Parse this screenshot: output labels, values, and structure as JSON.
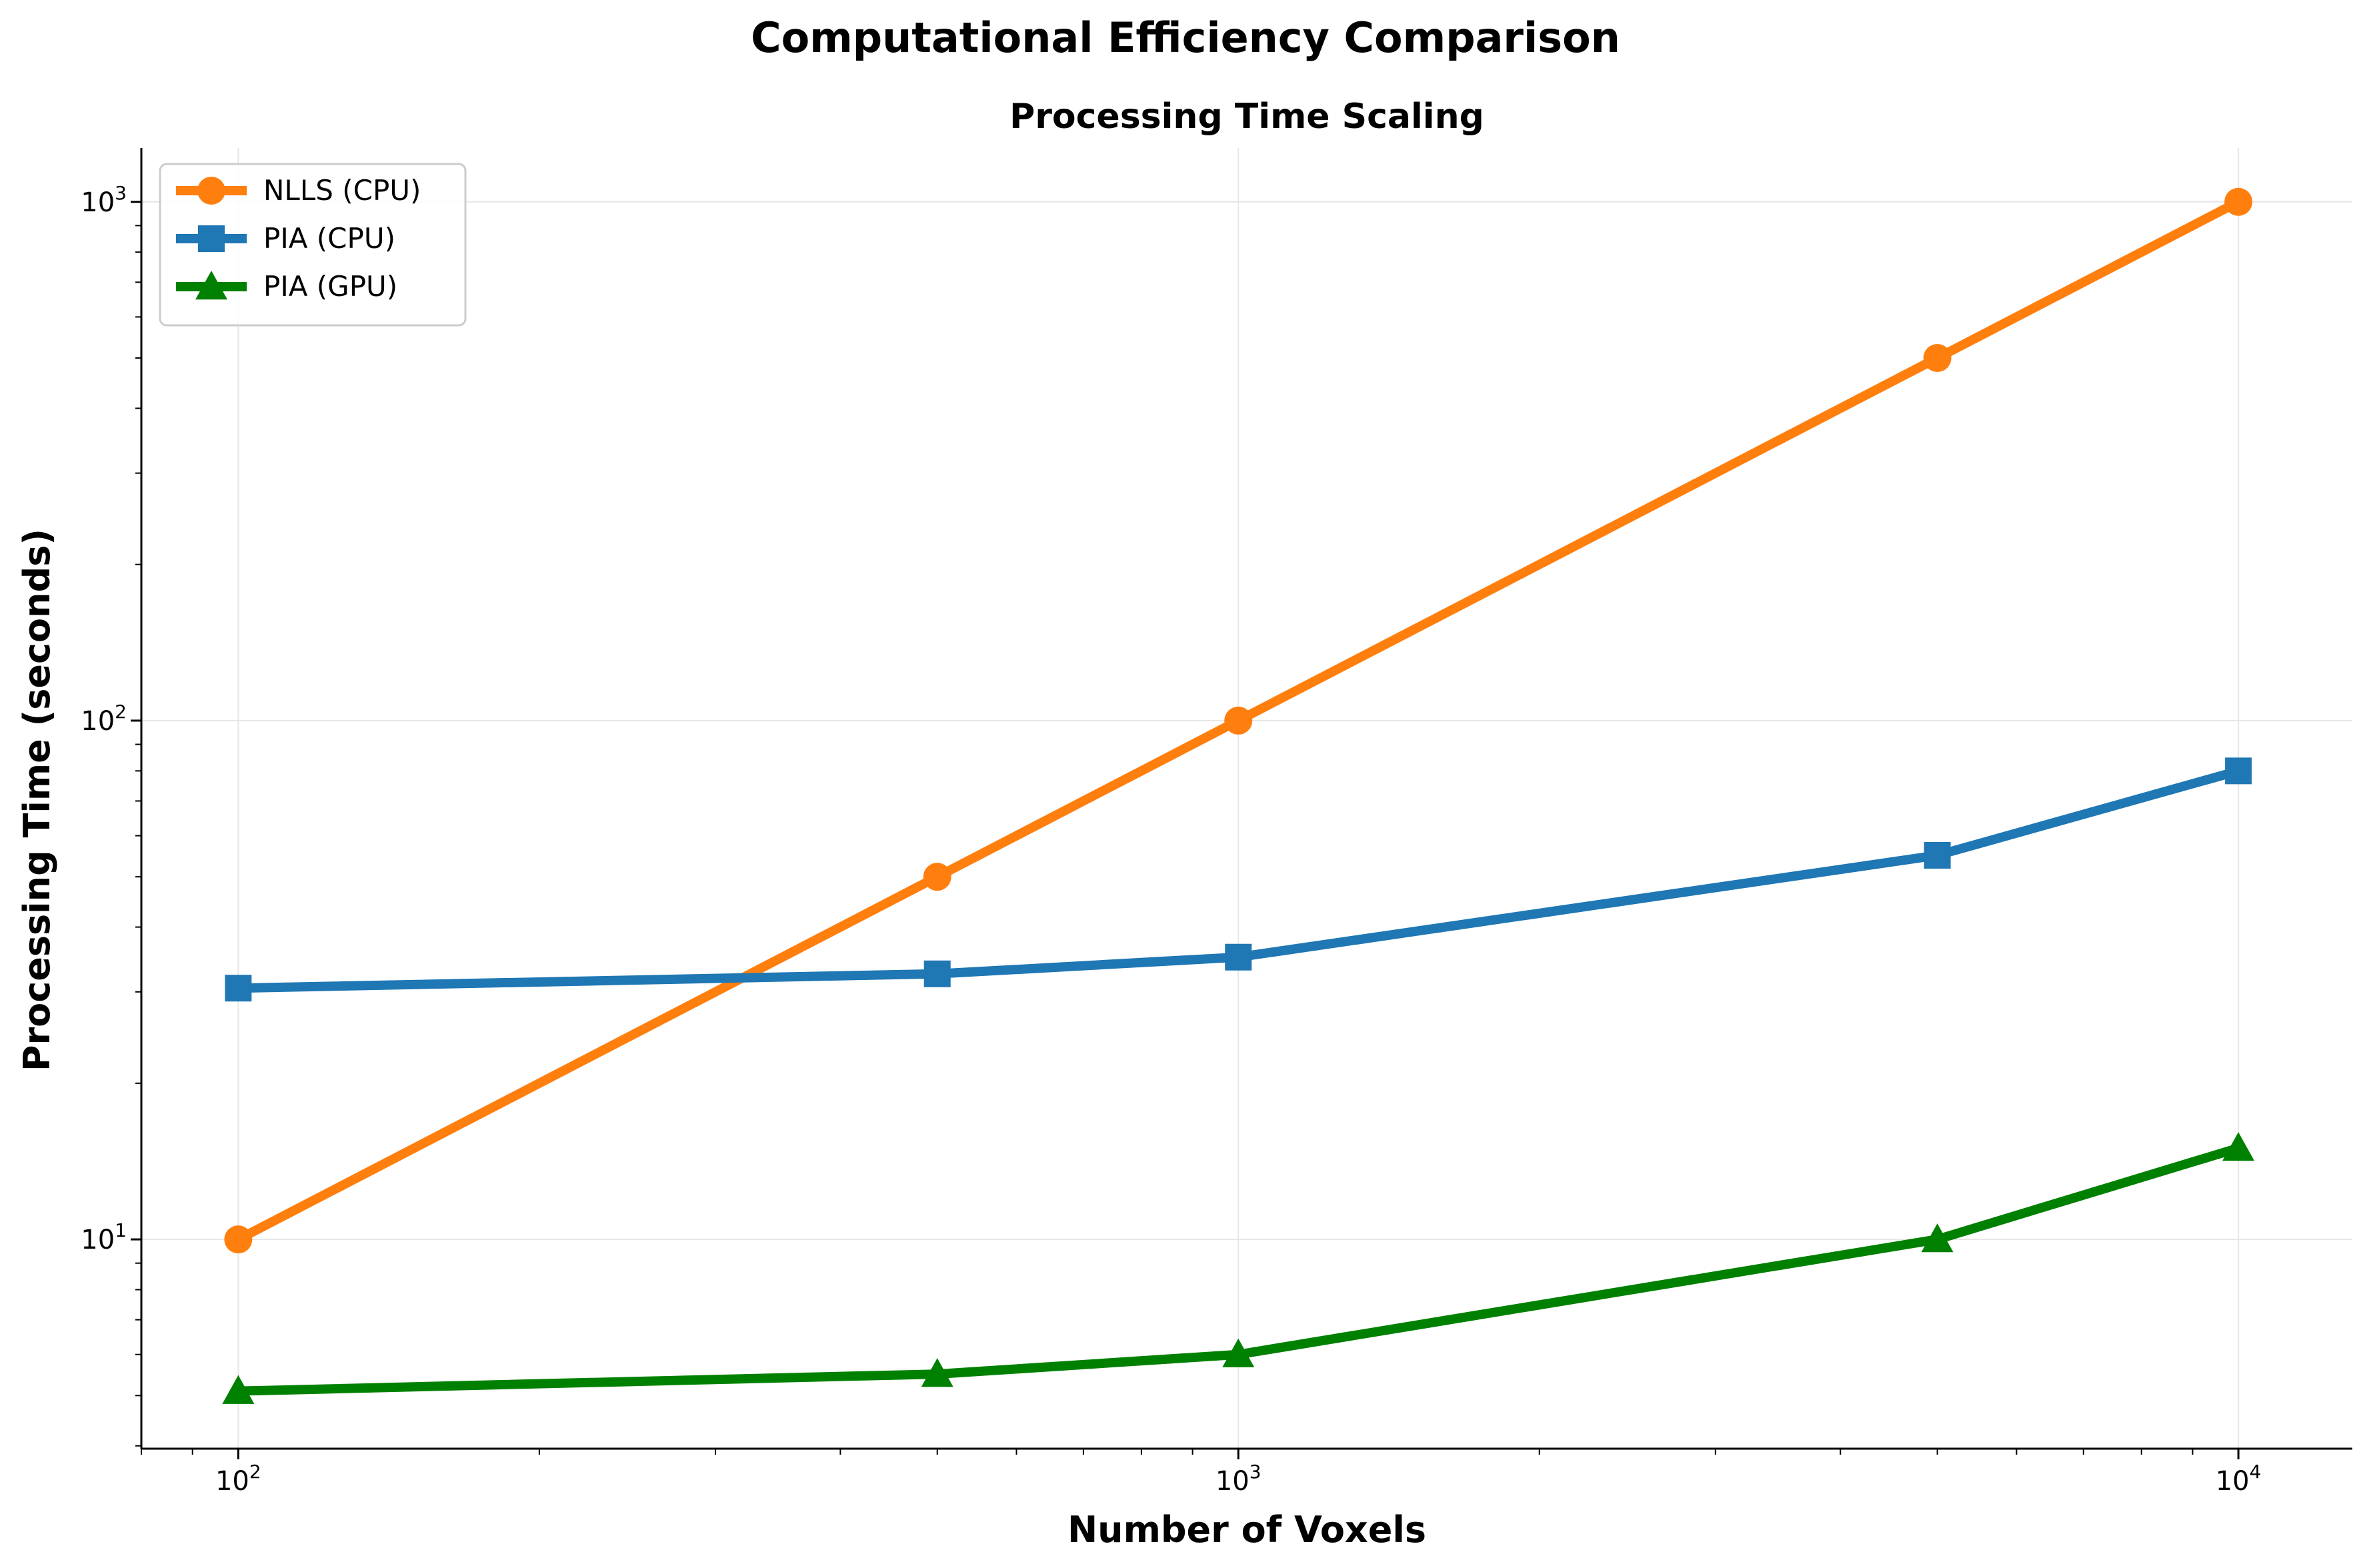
{
  "chart_data": {
    "type": "line",
    "suptitle": "Computational Efficiency Comparison",
    "title": "Processing Time Scaling",
    "xlabel": "Number of Voxels",
    "ylabel": "Processing Time (seconds)",
    "xscale": "log",
    "yscale": "log",
    "xlim": [
      80,
      13000
    ],
    "ylim": [
      3.95,
      1270
    ],
    "xticks": [
      100,
      1000,
      10000
    ],
    "yticks": [
      10,
      100,
      1000
    ],
    "grid": true,
    "legend_position": "top-left",
    "x": [
      100,
      500,
      1000,
      5000,
      10000
    ],
    "series": [
      {
        "name": "NLLS (CPU)",
        "values": [
          10,
          50,
          100,
          500,
          1000
        ],
        "color": "#ff7f0e",
        "marker": "circle"
      },
      {
        "name": "PIA (CPU)",
        "values": [
          30.5,
          32.5,
          35,
          55,
          80
        ],
        "color": "#1f77b4",
        "marker": "square"
      },
      {
        "name": "PIA (GPU)",
        "values": [
          5.1,
          5.5,
          6,
          10,
          15
        ],
        "color": "#008000",
        "marker": "triangle"
      }
    ]
  }
}
